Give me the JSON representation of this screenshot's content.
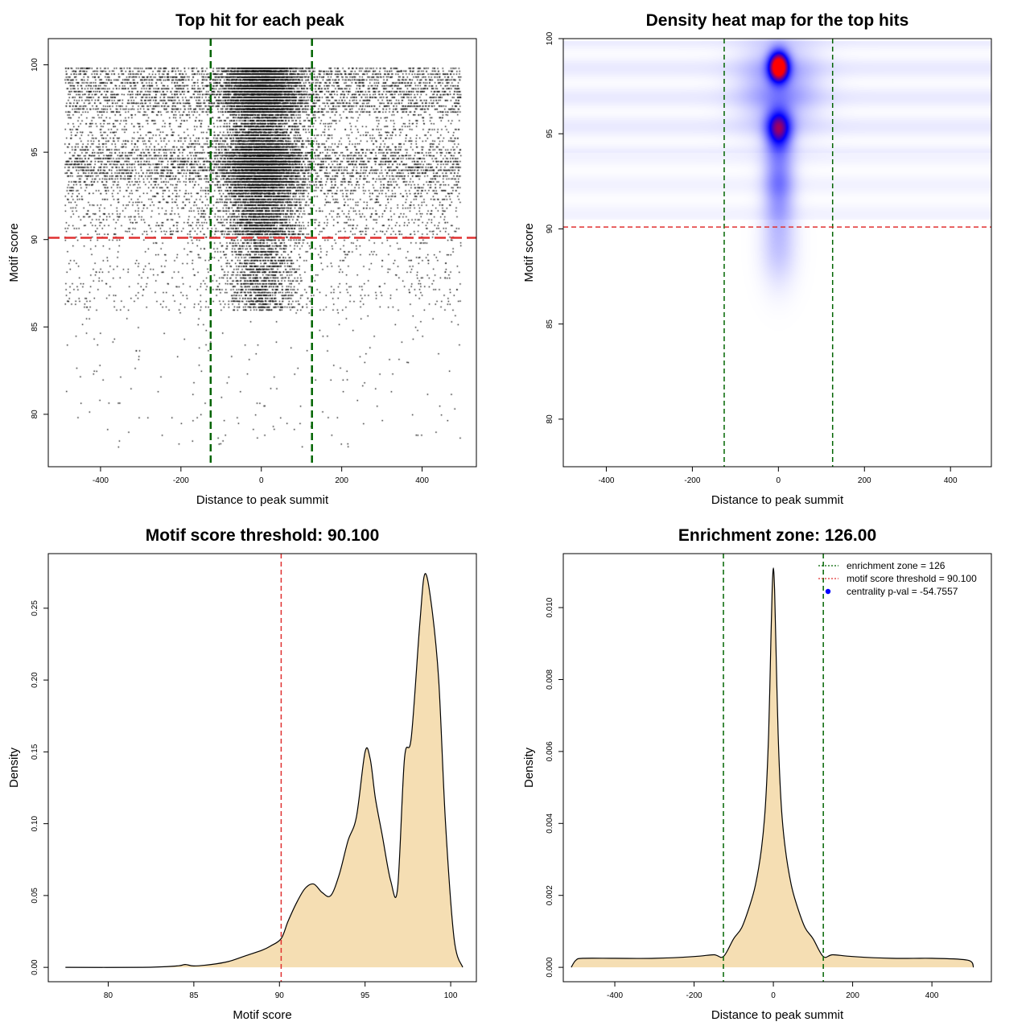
{
  "chart_data": [
    {
      "type": "scatter",
      "title": "Top hit for each peak",
      "xlabel": "Distance to peak summit",
      "ylabel": "Motif score",
      "xlim": [
        -530,
        535
      ],
      "ylim": [
        77,
        101.5
      ],
      "xticks": [
        -400,
        -200,
        0,
        200,
        400
      ],
      "yticks": [
        80,
        85,
        90,
        95,
        100
      ],
      "xtick_labels": [
        "-400",
        "-200",
        "0",
        "200",
        "400"
      ],
      "ytick_labels": [
        "80",
        "85",
        "90",
        "95",
        "100"
      ],
      "threshold_score": 90.1,
      "enrichment_zone": 126,
      "x_range_points": [
        -490,
        495
      ],
      "colors": {
        "points": "#000000",
        "threshold": "#e03030",
        "zone": "#006400"
      }
    },
    {
      "type": "heatmap",
      "title": "Density heat map for the top hits",
      "xlabel": "Distance to peak summit",
      "ylabel": "Motif score",
      "xlim": [
        -500,
        495
      ],
      "ylim": [
        77.5,
        100
      ],
      "xticks": [
        -400,
        -200,
        0,
        200,
        400
      ],
      "yticks": [
        80,
        85,
        90,
        95,
        100
      ],
      "xtick_labels": [
        "-400",
        "-200",
        "0",
        "200",
        "400"
      ],
      "ytick_labels": [
        "80",
        "85",
        "90",
        "95",
        "100"
      ],
      "threshold_score": 90.1,
      "enrichment_zone": 126,
      "peak_center": [
        0,
        98.5
      ],
      "colors": {
        "low": "#ffffff",
        "mid": "#0000ff",
        "high": "#ff0000",
        "threshold": "#e03030",
        "zone": "#006400"
      }
    },
    {
      "type": "area",
      "title": "Motif score threshold: 90.100",
      "xlabel": "Motif score",
      "ylabel": "Density",
      "xlim": [
        76.5,
        101.5
      ],
      "ylim": [
        -0.01,
        0.288
      ],
      "xticks": [
        80,
        85,
        90,
        95,
        100
      ],
      "yticks": [
        0.0,
        0.05,
        0.1,
        0.15,
        0.2,
        0.25
      ],
      "xtick_labels": [
        "80",
        "85",
        "90",
        "95",
        "100"
      ],
      "ytick_labels": [
        "0.00",
        "0.05",
        "0.10",
        "0.15",
        "0.20",
        "0.25"
      ],
      "x": [
        77.5,
        82,
        84,
        84.5,
        85,
        86,
        87,
        88,
        89,
        89.5,
        90.1,
        90.5,
        91,
        91.5,
        92,
        92.5,
        93,
        93.5,
        94,
        94.5,
        95,
        95.3,
        95.6,
        96,
        96.5,
        96.9,
        97.3,
        97.7,
        98.2,
        98.5,
        98.9,
        99.3,
        99.7,
        100.2,
        100.7
      ],
      "y": [
        0.0,
        0.0,
        0.001,
        0.002,
        0.001,
        0.002,
        0.004,
        0.008,
        0.012,
        0.015,
        0.02,
        0.032,
        0.045,
        0.055,
        0.058,
        0.052,
        0.05,
        0.065,
        0.088,
        0.105,
        0.15,
        0.145,
        0.118,
        0.092,
        0.06,
        0.055,
        0.145,
        0.16,
        0.24,
        0.274,
        0.25,
        0.2,
        0.1,
        0.02,
        0.0
      ],
      "threshold_score": 90.1,
      "colors": {
        "fill": "#f5deb3",
        "line": "#000000",
        "threshold": "#e03030"
      }
    },
    {
      "type": "area",
      "title": "Enrichment zone: 126.00",
      "xlabel": "Distance to peak summit",
      "ylabel": "Density",
      "xlim": [
        -530,
        550
      ],
      "ylim": [
        -0.0004,
        0.0115
      ],
      "xticks": [
        -400,
        -200,
        0,
        200,
        400
      ],
      "yticks": [
        0.0,
        0.002,
        0.004,
        0.006,
        0.008,
        0.01
      ],
      "xtick_labels": [
        "-400",
        "-200",
        "0",
        "200",
        "400"
      ],
      "ytick_labels": [
        "0.000",
        "0.002",
        "0.004",
        "0.006",
        "0.008",
        "0.010"
      ],
      "x": [
        -510,
        -498,
        -480,
        -400,
        -300,
        -200,
        -150,
        -126,
        -100,
        -80,
        -60,
        -45,
        -30,
        -20,
        -12,
        -6,
        -3,
        0,
        3,
        6,
        12,
        20,
        30,
        45,
        60,
        80,
        100,
        126,
        150,
        200,
        300,
        400,
        490,
        505
      ],
      "y": [
        0.0,
        0.0002,
        0.00025,
        0.00025,
        0.00025,
        0.0003,
        0.00035,
        0.0003,
        0.0008,
        0.0011,
        0.0017,
        0.0023,
        0.0033,
        0.0045,
        0.0065,
        0.0092,
        0.0105,
        0.0111,
        0.0105,
        0.0092,
        0.0065,
        0.0045,
        0.0033,
        0.0023,
        0.0017,
        0.0011,
        0.0008,
        0.0003,
        0.00035,
        0.0003,
        0.00025,
        0.00025,
        0.0002,
        0.0
      ],
      "enrichment_zone": 126,
      "legend": {
        "position": "top-right",
        "entries": [
          "enrichment zone = 126",
          "motif score threshold = 90.100",
          "centrality p-val = -54.7557"
        ]
      },
      "colors": {
        "fill": "#f5deb3",
        "line": "#000000",
        "zone": "#006400",
        "threshold": "#e03030",
        "pval": "#0000ff"
      }
    }
  ]
}
